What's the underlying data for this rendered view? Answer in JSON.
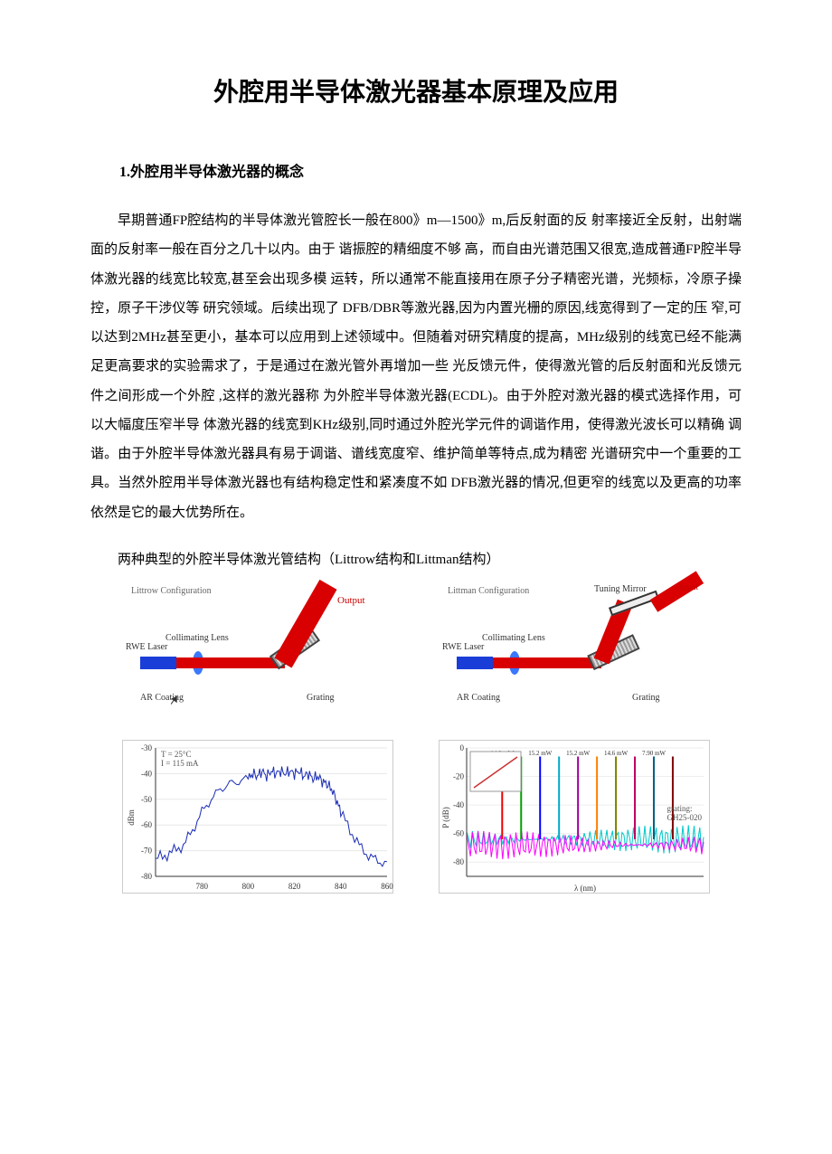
{
  "title": "外腔用半导体激光器基本原理及应用",
  "section1_heading": "1.外腔用半导体激光器的概念",
  "body_text": "早期普通FP腔结构的半导体激光管腔长一般在800》m—1500》m,后反射面的反 射率接近全反射，出射端面的反射率一般在百分之几十以内。由于 谐振腔的精细度不够 高，而自由光谱范围又很宽,造成普通FP腔半导体激光器的线宽比较宽,甚至会出现多模 运转，所以通常不能直接用在原子分子精密光谱，光频标，冷原子操控，原子干涉仪等 研究领域。后续出现了 DFB/DBR等激光器,因为内置光栅的原因,线宽得到了一定的压 窄,可以达到2MHz甚至更小，基本可以应用到上述领域中。但随着对研究精度的提高，MHz级别的线宽已经不能满足更高要求的实验需求了，于是通过在激光管外再增加一些 光反馈元件，使得激光管的后反射面和光反馈元件之间形成一个外腔 ,这样的激光器称 为外腔半导体激光器(ECDL)。由于外腔对激光器的模式选择作用，可以大幅度压窄半导  体激光器的线宽到KHz级别,同时通过外腔光学元件的调谐作用，使得激光波长可以精确 调谐。由于外腔半导体激光器具有易于调谐、谱线宽度窄、维护简单等特点,成为精密 光谱研究中一个重要的工具。当然外腔用半导体激光器也有结构稳定性和紧凑度不如 DFB激光器的情况,但更窄的线宽以及更高的功率依然是它的最大优势所在。",
  "subheading": "两种典型的外腔半导体激光管结构（Littrow结构和Littman结构）",
  "title_fontsize": 28,
  "section_fontsize": 16,
  "body_fontsize": 15,
  "body_lineheight": 2.15,
  "diagram_littrow": {
    "title": "Littrow Configuration",
    "rwe_label": "RWE Laser",
    "coll_label": "Collimating Lens",
    "grating_label": "Grating",
    "arcoat_label": "AR Coating",
    "output_label": "Output",
    "laser_color": "#1a3dd8",
    "lens_color": "#3b77ff",
    "beam_color": "#d80000",
    "grating_angle_deg": -35,
    "out_beam_angle_deg": -60
  },
  "diagram_littman": {
    "title": "Littman Configuration",
    "rwe_label": "RWE Laser",
    "coll_label": "Collimating Lens",
    "grating_label": "Grating",
    "arcoat_label": "AR Coating",
    "output_label": "Output",
    "tuning_mirror_label": "Tuning Mirror",
    "laser_color": "#1a3dd8",
    "lens_color": "#3b77ff",
    "beam_color": "#d80000",
    "grating_angle_deg": -25,
    "mirror_angle_deg": -20
  },
  "chart_left": {
    "type": "line",
    "title_inset": "T = 25°C\\nI = 115 mA",
    "xlim": [
      760,
      860
    ],
    "xticks": [
      780,
      800,
      820,
      840,
      860
    ],
    "ylim": [
      -80,
      -30
    ],
    "yticks": [
      -80,
      -70,
      -60,
      -50,
      -40,
      -30
    ],
    "xlabel": "",
    "ylabel": "dBm",
    "line_color": "#1a2db5",
    "background_color": "#ffffff",
    "grid_color": "#e7e7e7",
    "data": [
      [
        760,
        -73
      ],
      [
        764,
        -72
      ],
      [
        768,
        -70
      ],
      [
        772,
        -68
      ],
      [
        776,
        -62
      ],
      [
        780,
        -55
      ],
      [
        784,
        -50
      ],
      [
        788,
        -46
      ],
      [
        792,
        -44
      ],
      [
        796,
        -43
      ],
      [
        800,
        -42
      ],
      [
        802,
        -40
      ],
      [
        804,
        -41
      ],
      [
        806,
        -39
      ],
      [
        808,
        -41
      ],
      [
        810,
        -39
      ],
      [
        812,
        -40
      ],
      [
        814,
        -39
      ],
      [
        816,
        -40
      ],
      [
        818,
        -39
      ],
      [
        820,
        -40
      ],
      [
        822,
        -39
      ],
      [
        824,
        -41
      ],
      [
        826,
        -40
      ],
      [
        828,
        -42
      ],
      [
        830,
        -41
      ],
      [
        832,
        -43
      ],
      [
        834,
        -44
      ],
      [
        836,
        -46
      ],
      [
        838,
        -50
      ],
      [
        840,
        -55
      ],
      [
        844,
        -62
      ],
      [
        848,
        -68
      ],
      [
        852,
        -72
      ],
      [
        856,
        -74
      ],
      [
        860,
        -75
      ]
    ]
  },
  "chart_right": {
    "type": "multi-line",
    "xlim": [
      0,
      100
    ],
    "ylim": [
      -90,
      0
    ],
    "yticks": [
      -80,
      -60,
      -40,
      -20,
      0
    ],
    "xlabel": "λ (nm)",
    "ylabel": "P (dB)",
    "background_color": "#ffffff",
    "noise_floor_colors": [
      "#00c8c8",
      "#ff00ff"
    ],
    "spike_colors": [
      "#f00000",
      "#00a000",
      "#0000ff",
      "#00aac8",
      "#a000a0",
      "#ff8000",
      "#808000",
      "#c00060",
      "#006080",
      "#800000"
    ],
    "spike_positions": [
      15,
      23,
      31,
      39,
      47,
      55,
      63,
      71,
      79,
      87
    ],
    "spike_top": -6,
    "floor_mean": -64,
    "floor_amp": 10,
    "legend_label": "grating:\\nGH25-020",
    "top_values": [
      "14.0 mW",
      "15.2 mW",
      "15.2 mW",
      "14.6 mW",
      "7.90 mW"
    ],
    "inset": {
      "xlim": [
        0,
        10
      ],
      "ylim": [
        0,
        10
      ],
      "line_color": "#cc3333"
    }
  }
}
